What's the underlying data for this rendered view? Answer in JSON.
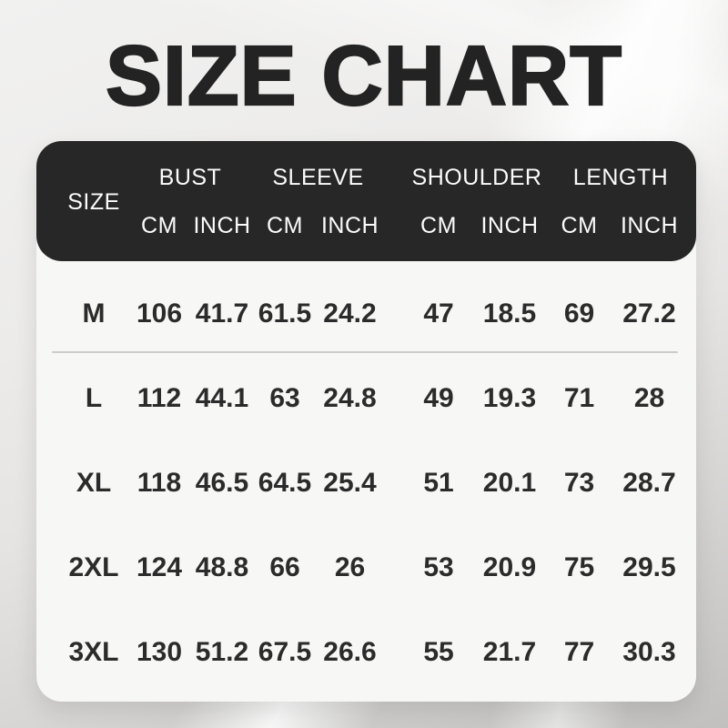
{
  "title": "SIZE CHART",
  "colors": {
    "header_bg": "#272727",
    "header_text": "#fbfbfb",
    "card_bg": "#f7f7f6",
    "body_text": "#2b2b2b",
    "title_text": "#232323",
    "divider": "#cccccc"
  },
  "table": {
    "size_label": "SIZE",
    "groups": [
      {
        "label": "BUST"
      },
      {
        "label": "SLEEVE"
      },
      {
        "label": "SHOULDER"
      },
      {
        "label": "LENGTH"
      }
    ],
    "units": [
      "CM",
      "INCH",
      "CM",
      "INCH",
      "CM",
      "INCH",
      "CM",
      "INCH"
    ],
    "rows": [
      {
        "size": "M",
        "values": [
          "106",
          "41.7",
          "61.5",
          "24.2",
          "47",
          "18.5",
          "69",
          "27.2"
        ]
      },
      {
        "size": "L",
        "values": [
          "112",
          "44.1",
          "63",
          "24.8",
          "49",
          "19.3",
          "71",
          "28"
        ]
      },
      {
        "size": "XL",
        "values": [
          "118",
          "46.5",
          "64.5",
          "25.4",
          "51",
          "20.1",
          "73",
          "28.7"
        ]
      },
      {
        "size": "2XL",
        "values": [
          "124",
          "48.8",
          "66",
          "26",
          "53",
          "20.9",
          "75",
          "29.5"
        ]
      },
      {
        "size": "3XL",
        "values": [
          "130",
          "51.2",
          "67.5",
          "26.6",
          "55",
          "21.7",
          "77",
          "30.3"
        ]
      }
    ]
  },
  "chart_data": {
    "type": "table",
    "title": "SIZE CHART",
    "columns": [
      "SIZE",
      "BUST CM",
      "BUST INCH",
      "SLEEVE CM",
      "SLEEVE INCH",
      "SHOULDER CM",
      "SHOULDER INCH",
      "LENGTH CM",
      "LENGTH INCH"
    ],
    "rows": [
      [
        "M",
        106,
        41.7,
        61.5,
        24.2,
        47,
        18.5,
        69,
        27.2
      ],
      [
        "L",
        112,
        44.1,
        63,
        24.8,
        49,
        19.3,
        71,
        28
      ],
      [
        "XL",
        118,
        46.5,
        64.5,
        25.4,
        51,
        20.1,
        73,
        28.7
      ],
      [
        "2XL",
        124,
        48.8,
        66,
        26,
        53,
        20.9,
        75,
        29.5
      ],
      [
        "3XL",
        130,
        51.2,
        67.5,
        26.6,
        55,
        21.7,
        77,
        30.3
      ]
    ]
  }
}
